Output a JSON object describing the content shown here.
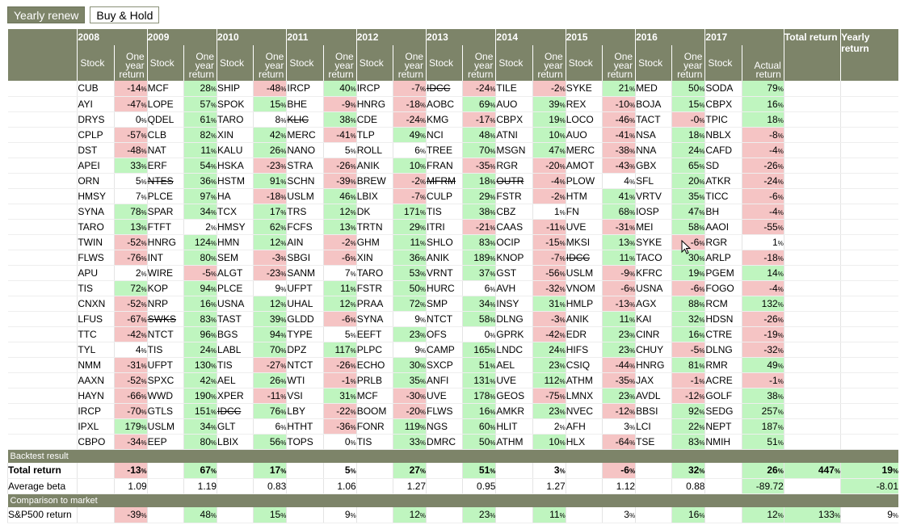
{
  "tabs": [
    {
      "label": "Yearly renew",
      "active": true
    },
    {
      "label": "Buy & Hold",
      "active": false
    }
  ],
  "header": {
    "stock_label": "Stock",
    "return_label": "One year return",
    "actual_return_label": "Actual return",
    "total_return_label": "Total return",
    "yearly_return_label": "Yearly return"
  },
  "colors": {
    "header_bg": "#7d8469",
    "positive_bg": "#bff5bf",
    "negative_bg": "#f5c4c4"
  },
  "years": [
    {
      "year": "2008",
      "rows": [
        [
          "CUB",
          "-14"
        ],
        [
          "AYI",
          "-47"
        ],
        [
          "DRYS",
          "0"
        ],
        [
          "CPLP",
          "-57"
        ],
        [
          "DST",
          "-48"
        ],
        [
          "APEI",
          "33"
        ],
        [
          "ORN",
          "5"
        ],
        [
          "HMSY",
          "7"
        ],
        [
          "SYNA",
          "78"
        ],
        [
          "TARO",
          "13"
        ],
        [
          "TWIN",
          "-52"
        ],
        [
          "FLWS",
          "-76"
        ],
        [
          "APU",
          "2"
        ],
        [
          "TIS",
          "72"
        ],
        [
          "CNXN",
          "-52"
        ],
        [
          "LFUS",
          "-67"
        ],
        [
          "TTC",
          "-42"
        ],
        [
          "TYL",
          "4"
        ],
        [
          "NMM",
          "-31"
        ],
        [
          "AAXN",
          "-52"
        ],
        [
          "HAYN",
          "-66"
        ],
        [
          "IRCP",
          "-70"
        ],
        [
          "IPXL",
          "179"
        ],
        [
          "CBPO",
          "-34"
        ]
      ]
    },
    {
      "year": "2009",
      "rows": [
        [
          "MCF",
          "28"
        ],
        [
          "LOPE",
          "57"
        ],
        [
          "QDEL",
          "61"
        ],
        [
          "CLB",
          "82"
        ],
        [
          "NAT",
          "11"
        ],
        [
          "ERF",
          "54"
        ],
        [
          "NTES",
          "36",
          "del"
        ],
        [
          "PLCE",
          "97"
        ],
        [
          "SPAR",
          "34"
        ],
        [
          "FTFT",
          "2"
        ],
        [
          "HNRG",
          "124"
        ],
        [
          "INT",
          "80"
        ],
        [
          "WIRE",
          "-5"
        ],
        [
          "KOP",
          "94"
        ],
        [
          "NRP",
          "16"
        ],
        [
          "SWKS",
          "83",
          "del"
        ],
        [
          "NTCT",
          "96"
        ],
        [
          "TIS",
          "24"
        ],
        [
          "UFPT",
          "130"
        ],
        [
          "SPXC",
          "42"
        ],
        [
          "WWD",
          "190"
        ],
        [
          "GTLS",
          "151"
        ],
        [
          "USLM",
          "34"
        ],
        [
          "EEP",
          "80"
        ]
      ]
    },
    {
      "year": "2010",
      "rows": [
        [
          "SHIP",
          "-48"
        ],
        [
          "SPOK",
          "15"
        ],
        [
          "TARO",
          "8"
        ],
        [
          "XIN",
          "42"
        ],
        [
          "KALU",
          "26"
        ],
        [
          "HSKA",
          "-23"
        ],
        [
          "HSTM",
          "91"
        ],
        [
          "HA",
          "-18"
        ],
        [
          "TCX",
          "17"
        ],
        [
          "HMSY",
          "62"
        ],
        [
          "HMN",
          "12"
        ],
        [
          "SEM",
          "-3"
        ],
        [
          "ALGT",
          "-23"
        ],
        [
          "PLCE",
          "9"
        ],
        [
          "USNA",
          "12"
        ],
        [
          "TAST",
          "39"
        ],
        [
          "BGS",
          "94"
        ],
        [
          "LABL",
          "70"
        ],
        [
          "TIS",
          "-27"
        ],
        [
          "AEL",
          "26"
        ],
        [
          "XPER",
          "-11"
        ],
        [
          "IDCC",
          "76",
          "del"
        ],
        [
          "GLT",
          "6"
        ],
        [
          "LBIX",
          "56"
        ]
      ]
    },
    {
      "year": "2011",
      "rows": [
        [
          "IRCP",
          "40"
        ],
        [
          "BHE",
          "-9"
        ],
        [
          "KLIC",
          "38",
          "del"
        ],
        [
          "MERC",
          "-41"
        ],
        [
          "NANO",
          "5"
        ],
        [
          "STRA",
          "-26"
        ],
        [
          "SCHN",
          "-39"
        ],
        [
          "USLM",
          "46"
        ],
        [
          "TRS",
          "12"
        ],
        [
          "FCFS",
          "13"
        ],
        [
          "AIN",
          "-2"
        ],
        [
          "SBGI",
          "-6"
        ],
        [
          "SANM",
          "7"
        ],
        [
          "UFPT",
          "11"
        ],
        [
          "UHAL",
          "12"
        ],
        [
          "GLDD",
          "-6"
        ],
        [
          "TYPE",
          "5"
        ],
        [
          "DPZ",
          "117"
        ],
        [
          "NTCT",
          "-26"
        ],
        [
          "WTI",
          "-1"
        ],
        [
          "VSI",
          "31"
        ],
        [
          "LBY",
          "-22"
        ],
        [
          "HTHT",
          "-36"
        ],
        [
          "TOPS",
          "0"
        ]
      ]
    },
    {
      "year": "2012",
      "rows": [
        [
          "IRCP",
          "-7"
        ],
        [
          "HNRG",
          "-18"
        ],
        [
          "CDE",
          "-24"
        ],
        [
          "TLP",
          "49"
        ],
        [
          "ROLL",
          "6"
        ],
        [
          "ANIK",
          "10"
        ],
        [
          "BREW",
          "-2"
        ],
        [
          "LBIX",
          "-7"
        ],
        [
          "DK",
          "171"
        ],
        [
          "TRTN",
          "29"
        ],
        [
          "GHM",
          "11"
        ],
        [
          "XIN",
          "36"
        ],
        [
          "TARO",
          "53"
        ],
        [
          "FSTR",
          "50"
        ],
        [
          "PRAA",
          "72"
        ],
        [
          "SYNA",
          "9"
        ],
        [
          "EEFT",
          "23"
        ],
        [
          "PLPC",
          "9"
        ],
        [
          "ECHO",
          "30"
        ],
        [
          "PRLB",
          "35"
        ],
        [
          "MCF",
          "-30"
        ],
        [
          "BOOM",
          "-20"
        ],
        [
          "FONR",
          "119"
        ],
        [
          "TIS",
          "33"
        ]
      ]
    },
    {
      "year": "2013",
      "rows": [
        [
          "IDCC",
          "-24",
          "del"
        ],
        [
          "AOBC",
          "69"
        ],
        [
          "KMG",
          "-17"
        ],
        [
          "NCI",
          "48"
        ],
        [
          "TREE",
          "70"
        ],
        [
          "FRAN",
          "-35"
        ],
        [
          "MFRM",
          "18",
          "del"
        ],
        [
          "CULP",
          "29"
        ],
        [
          "TIS",
          "38"
        ],
        [
          "ITRI",
          "-21"
        ],
        [
          "SHLO",
          "83"
        ],
        [
          "ANIK",
          "189"
        ],
        [
          "VRNT",
          "37"
        ],
        [
          "HURC",
          "6"
        ],
        [
          "SMP",
          "34"
        ],
        [
          "NTCT",
          "58"
        ],
        [
          "OFS",
          "0"
        ],
        [
          "CAMP",
          "165"
        ],
        [
          "SXCP",
          "51"
        ],
        [
          "ANFI",
          "131"
        ],
        [
          "UVE",
          "178"
        ],
        [
          "FLWS",
          "16"
        ],
        [
          "NGS",
          "60"
        ],
        [
          "DMRC",
          "50"
        ]
      ]
    },
    {
      "year": "2014",
      "rows": [
        [
          "TILE",
          "-2"
        ],
        [
          "AUO",
          "39"
        ],
        [
          "CBPX",
          "19"
        ],
        [
          "ATNI",
          "10"
        ],
        [
          "MSGN",
          "47"
        ],
        [
          "RGR",
          "-20"
        ],
        [
          "OUTR",
          "-4",
          "del"
        ],
        [
          "FSTR",
          "-2"
        ],
        [
          "CBZ",
          "1"
        ],
        [
          "CAAS",
          "-11"
        ],
        [
          "OCIP",
          "-15"
        ],
        [
          "KNOP",
          "-7"
        ],
        [
          "GST",
          "-56"
        ],
        [
          "AVH",
          "-32"
        ],
        [
          "INSY",
          "31"
        ],
        [
          "DLNG",
          "-3"
        ],
        [
          "GPRK",
          "-42"
        ],
        [
          "LNDC",
          "24"
        ],
        [
          "AEL",
          "23"
        ],
        [
          "UVE",
          "112"
        ],
        [
          "GEOS",
          "-75"
        ],
        [
          "AMKR",
          "23"
        ],
        [
          "HLIT",
          "2"
        ],
        [
          "ATHM",
          "10"
        ]
      ]
    },
    {
      "year": "2015",
      "rows": [
        [
          "SYKE",
          "21"
        ],
        [
          "REX",
          "-10"
        ],
        [
          "LOCO",
          "-46"
        ],
        [
          "AUO",
          "-41"
        ],
        [
          "MERC",
          "-38"
        ],
        [
          "AMOT",
          "-43"
        ],
        [
          "PLOW",
          "4"
        ],
        [
          "HTM",
          "41"
        ],
        [
          "FN",
          "68"
        ],
        [
          "UVE",
          "-31"
        ],
        [
          "MKSI",
          "13"
        ],
        [
          "IDCC",
          "11",
          "del"
        ],
        [
          "USLM",
          "-9"
        ],
        [
          "VNOM",
          "-6"
        ],
        [
          "HMLP",
          "-13"
        ],
        [
          "ANIK",
          "11"
        ],
        [
          "EDR",
          "23"
        ],
        [
          "HIFS",
          "23"
        ],
        [
          "CSIQ",
          "-44"
        ],
        [
          "ATHM",
          "-35"
        ],
        [
          "LMNX",
          "23"
        ],
        [
          "NVEC",
          "-12"
        ],
        [
          "AFH",
          "3"
        ],
        [
          "HLX",
          "-64"
        ]
      ]
    },
    {
      "year": "2016",
      "rows": [
        [
          "MED",
          "50"
        ],
        [
          "BOJA",
          "15"
        ],
        [
          "TACT",
          "-0"
        ],
        [
          "NSA",
          "18"
        ],
        [
          "NNA",
          "24"
        ],
        [
          "GBX",
          "65"
        ],
        [
          "SFL",
          "20"
        ],
        [
          "VRTV",
          "35"
        ],
        [
          "IOSP",
          "47"
        ],
        [
          "MEI",
          "58"
        ],
        [
          "SYKE",
          "-6"
        ],
        [
          "TACO",
          "30"
        ],
        [
          "KFRC",
          "19"
        ],
        [
          "USNA",
          "-6"
        ],
        [
          "AGX",
          "88"
        ],
        [
          "KAI",
          "32"
        ],
        [
          "CINR",
          "16"
        ],
        [
          "CHUY",
          "-5"
        ],
        [
          "HNRG",
          "81"
        ],
        [
          "JAX",
          "-1"
        ],
        [
          "AVDL",
          "-12"
        ],
        [
          "BBSI",
          "92"
        ],
        [
          "LCI",
          "22"
        ],
        [
          "TSE",
          "83"
        ]
      ]
    },
    {
      "year": "2017",
      "rows": [
        [
          "SODA",
          "79"
        ],
        [
          "CBPX",
          "16"
        ],
        [
          "TPIC",
          "18"
        ],
        [
          "NBLX",
          "-8"
        ],
        [
          "CAFD",
          "-4"
        ],
        [
          "SD",
          "-26"
        ],
        [
          "ATKR",
          "-24"
        ],
        [
          "TICC",
          "-6"
        ],
        [
          "BH",
          "-4"
        ],
        [
          "AAOI",
          "-55"
        ],
        [
          "RGR",
          "1"
        ],
        [
          "ARLP",
          "-18"
        ],
        [
          "PGEM",
          "14"
        ],
        [
          "FOGO",
          "-4"
        ],
        [
          "RCM",
          "132"
        ],
        [
          "HDSN",
          "-26"
        ],
        [
          "CTRE",
          "-19"
        ],
        [
          "DLNG",
          "-32"
        ],
        [
          "RMR",
          "49"
        ],
        [
          "ACRE",
          "-1"
        ],
        [
          "GOLF",
          "38"
        ],
        [
          "SEDG",
          "257"
        ],
        [
          "NEPT",
          "187"
        ],
        [
          "NMIH",
          "51"
        ]
      ]
    }
  ],
  "backtest": {
    "section_label": "Backtest result",
    "total_label": "Total return",
    "beta_label": "Average beta",
    "year_returns": [
      "-13",
      "67",
      "17",
      "5",
      "27",
      "51",
      "3",
      "-6",
      "32",
      "26"
    ],
    "year_betas": [
      "1.09",
      "1.19",
      "0.83",
      "1.06",
      "1.27",
      "0.95",
      "1.27",
      "1.12",
      "0.88",
      "-89.72"
    ],
    "total_return": "447",
    "yearly_return": "19",
    "yearly_beta": "-8.01"
  },
  "market": {
    "section_label": "Comparison to market",
    "sp500_label": "S&P500 return",
    "year_returns": [
      "-39",
      "48",
      "15",
      "9",
      "12",
      "23",
      "11",
      "3",
      "16",
      "12"
    ],
    "total_return": "133",
    "yearly_return": "9"
  }
}
